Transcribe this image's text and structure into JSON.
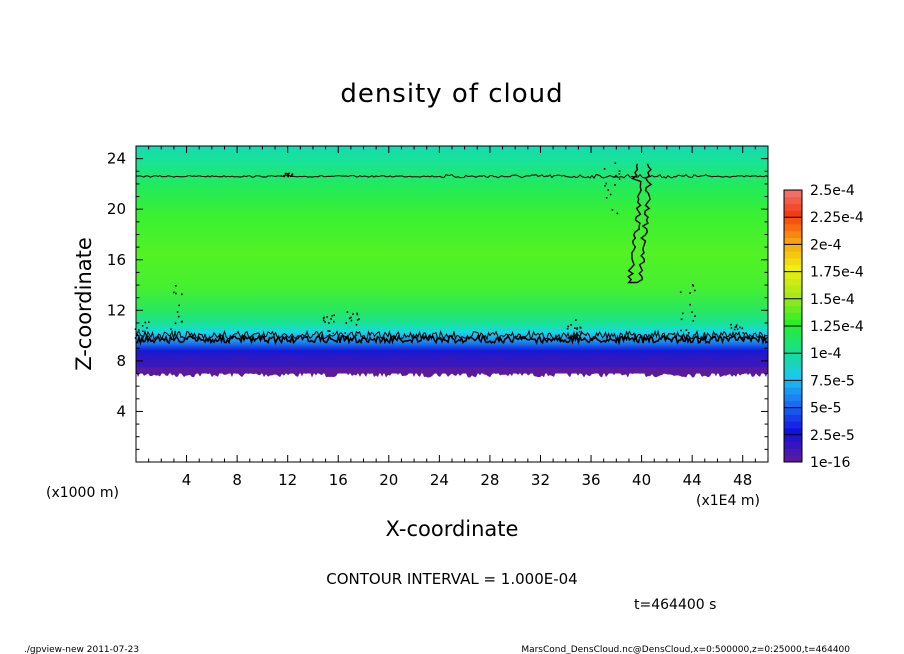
{
  "chart_data": {
    "type": "heatmap",
    "title": "density of cloud",
    "xlabel": "X-coordinate",
    "ylabel": "Z-coordinate",
    "x_unit_left": "(x1000 m)",
    "x_unit_right": "(x1E4 m)",
    "xlim": [
      0,
      50
    ],
    "ylim": [
      0,
      25
    ],
    "x_ticks": [
      4,
      8,
      12,
      16,
      20,
      24,
      28,
      32,
      36,
      40,
      44,
      48
    ],
    "y_ticks": [
      4,
      8,
      12,
      16,
      20,
      24
    ],
    "contour_interval_label": "CONTOUR INTERVAL = 1.000E-04",
    "time_label": "t=464400 s",
    "cloud_layer": {
      "z_bottom": 7.0,
      "z_top": 22.8,
      "contour_1e-4_lower_z": 9.7,
      "contour_1e-4_upper_z": 22.6
    },
    "colorbar": {
      "levels": [
        "1e-16",
        "2.5e-5",
        "5e-5",
        "7.5e-5",
        "1e-4",
        "1.25e-4",
        "1.5e-4",
        "1.75e-4",
        "2e-4",
        "2.25e-4",
        "2.5e-4"
      ],
      "colors": [
        "#5a1aa0",
        "#1010e0",
        "#1a6cf0",
        "#18c8f0",
        "#18e08a",
        "#28ee28",
        "#a8e818",
        "#f0f010",
        "#f8a010",
        "#f43a10",
        "#f08080"
      ]
    }
  },
  "footer": {
    "left": "./gpview-new   2011-07-23",
    "right": "MarsCond_DensCloud.nc@DensCloud,x=0:500000,z=0:25000,t=464400"
  }
}
